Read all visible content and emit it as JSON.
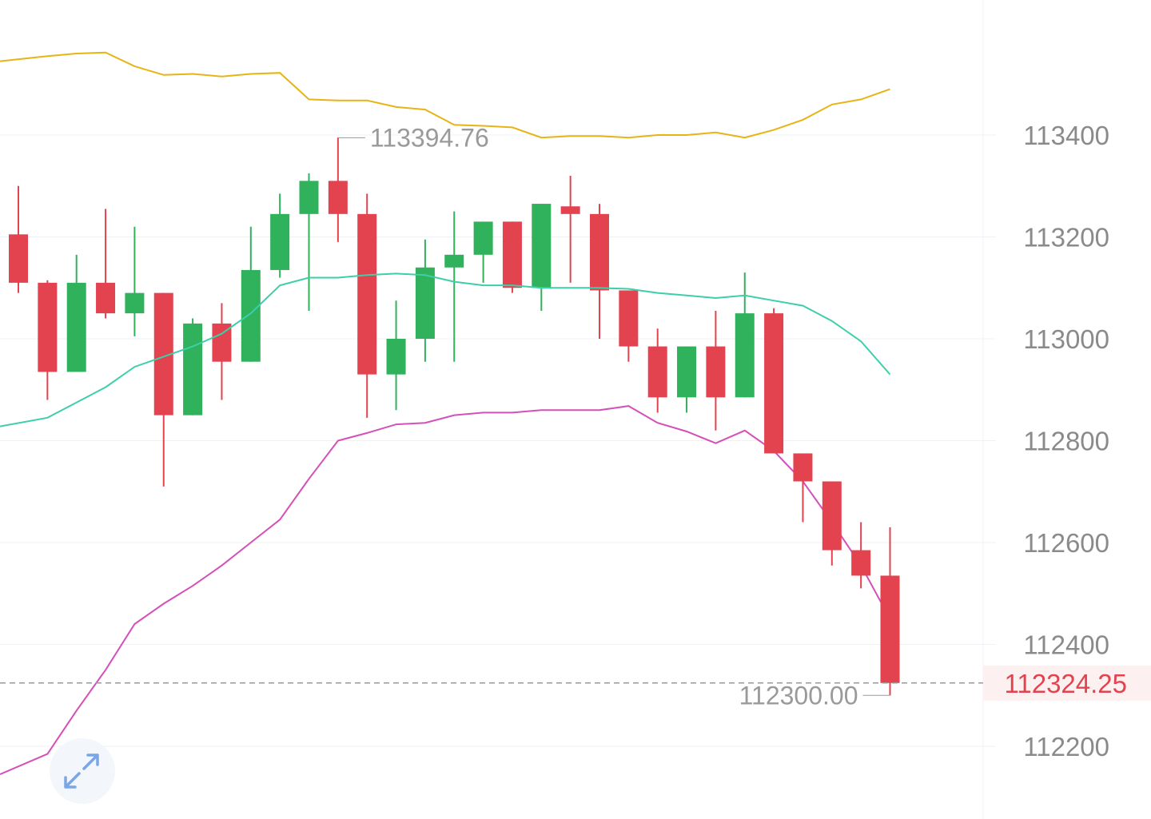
{
  "colors": {
    "up": "#30b15b",
    "down": "#e2434f",
    "upper_band": "#e7b416",
    "middle_band": "#3ccfa9",
    "lower_band": "#d54fb8",
    "grid": "#eef1f5",
    "axis_text": "#8a8a8a",
    "current_price_text": "#e2434f",
    "current_price_bg": "#fdf0f0",
    "expand_icon": "#7aa6e6"
  },
  "icons": {
    "expand": "expand-arrows-icon"
  },
  "chart_data": {
    "type": "candlestick",
    "y_range": [
      112100,
      113650
    ],
    "y_ticks": [
      113400,
      113200,
      113000,
      112800,
      112600,
      112400,
      112200
    ],
    "y_tick_labels": [
      "113400",
      "113200",
      "113000",
      "112800",
      "112600",
      "112400",
      "112200"
    ],
    "grid": true,
    "current_price": 112324.25,
    "current_price_label": "112324.25",
    "max_marker": {
      "index": 11,
      "value": 113394.76,
      "label": "113394.76"
    },
    "min_marker": {
      "index": 30,
      "value": 112300.0,
      "label": "112300.00"
    },
    "candles": [
      {
        "o": 113205,
        "h": 113300,
        "l": 113090,
        "c": 113110
      },
      {
        "o": 113110,
        "h": 113115,
        "l": 112880,
        "c": 112935
      },
      {
        "o": 112935,
        "h": 113165,
        "l": 112935,
        "c": 113110
      },
      {
        "o": 113110,
        "h": 113255,
        "l": 113040,
        "c": 113050
      },
      {
        "o": 113050,
        "h": 113220,
        "l": 113005,
        "c": 113090
      },
      {
        "o": 113090,
        "h": 113090,
        "l": 112710,
        "c": 112850
      },
      {
        "o": 112850,
        "h": 113040,
        "l": 112850,
        "c": 113030
      },
      {
        "o": 113030,
        "h": 113070,
        "l": 112880,
        "c": 112955
      },
      {
        "o": 112955,
        "h": 113220,
        "l": 112955,
        "c": 113135
      },
      {
        "o": 113135,
        "h": 113285,
        "l": 113120,
        "c": 113245
      },
      {
        "o": 113245,
        "h": 113325,
        "l": 113055,
        "c": 113310
      },
      {
        "o": 113310,
        "h": 113395,
        "l": 113190,
        "c": 113245
      },
      {
        "o": 113245,
        "h": 113285,
        "l": 112845,
        "c": 112930
      },
      {
        "o": 112930,
        "h": 113075,
        "l": 112860,
        "c": 113000
      },
      {
        "o": 113000,
        "h": 113195,
        "l": 112955,
        "c": 113140
      },
      {
        "o": 113140,
        "h": 113250,
        "l": 112955,
        "c": 113165
      },
      {
        "o": 113165,
        "h": 113225,
        "l": 113110,
        "c": 113230
      },
      {
        "o": 113230,
        "h": 113230,
        "l": 113090,
        "c": 113100
      },
      {
        "o": 113100,
        "h": 113265,
        "l": 113055,
        "c": 113265
      },
      {
        "o": 113260,
        "h": 113320,
        "l": 113110,
        "c": 113245
      },
      {
        "o": 113245,
        "h": 113265,
        "l": 113000,
        "c": 113095
      },
      {
        "o": 113095,
        "h": 113095,
        "l": 112955,
        "c": 112985
      },
      {
        "o": 112985,
        "h": 113020,
        "l": 112855,
        "c": 112885
      },
      {
        "o": 112885,
        "h": 112985,
        "l": 112855,
        "c": 112985
      },
      {
        "o": 112985,
        "h": 113055,
        "l": 112820,
        "c": 112885
      },
      {
        "o": 112885,
        "h": 113130,
        "l": 112885,
        "c": 113050
      },
      {
        "o": 113050,
        "h": 113060,
        "l": 112775,
        "c": 112775
      },
      {
        "o": 112775,
        "h": 112775,
        "l": 112640,
        "c": 112720
      },
      {
        "o": 112720,
        "h": 112720,
        "l": 112555,
        "c": 112585
      },
      {
        "o": 112585,
        "h": 112640,
        "l": 112510,
        "c": 112535
      },
      {
        "o": 112535,
        "h": 112630,
        "l": 112300,
        "c": 112324.25
      }
    ],
    "bands": {
      "upper": [
        113545,
        113555,
        113560,
        113562,
        113535,
        113518,
        113520,
        113515,
        113520,
        113522,
        113470,
        113468,
        113468,
        113455,
        113450,
        113420,
        113418,
        113415,
        113395,
        113398,
        113398,
        113395,
        113400,
        113400,
        113405,
        113395,
        113410,
        113430,
        113460,
        113470,
        113490
      ],
      "middle": [
        112828,
        112845,
        112875,
        112905,
        112945,
        112965,
        112985,
        113010,
        113050,
        113105,
        113120,
        113120,
        113125,
        113128,
        113125,
        113112,
        113105,
        113105,
        113100,
        113100,
        113100,
        113098,
        113090,
        113085,
        113080,
        113085,
        113075,
        113065,
        113035,
        112995,
        112930
      ],
      "lower": [
        112145,
        112185,
        112270,
        112350,
        112440,
        112480,
        112515,
        112555,
        112600,
        112645,
        112725,
        112800,
        112815,
        112832,
        112835,
        112850,
        112855,
        112855,
        112860,
        112860,
        112860,
        112868,
        112835,
        112818,
        112795,
        112820,
        112780,
        112720,
        112640,
        112555,
        112450
      ]
    }
  }
}
